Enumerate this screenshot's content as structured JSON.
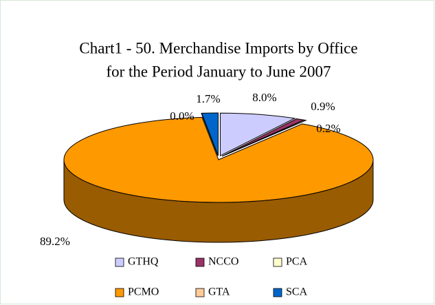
{
  "chart_data": {
    "type": "pie3d",
    "title": [
      "Chart1 - 50. Merchandise Imports by Office",
      "for the Period January to June 2007"
    ],
    "categories": [
      "GTHQ",
      "NCCO",
      "PCA",
      "PCMO",
      "GTA",
      "SCA"
    ],
    "values": [
      8.0,
      0.9,
      0.2,
      89.2,
      0.0,
      1.7
    ],
    "value_labels": [
      "8.0%",
      "0.9%",
      "0.2%",
      "89.2%",
      "0.0%",
      "1.7%"
    ],
    "colors": [
      "#ccccff",
      "#993366",
      "#ffffcc",
      "#ff9900",
      "#ffcc99",
      "#0066cc"
    ],
    "legend": "bottom"
  }
}
